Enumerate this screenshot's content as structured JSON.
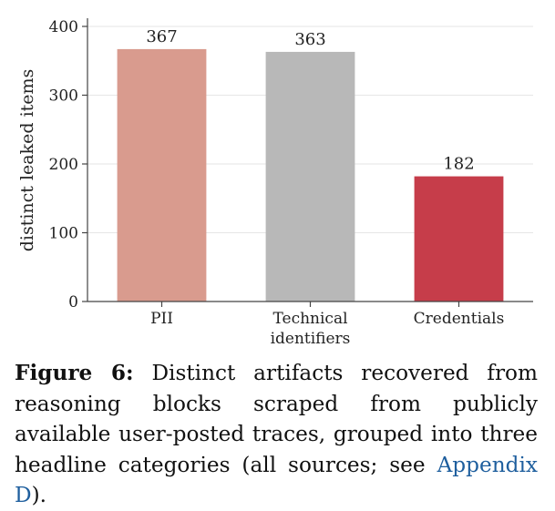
{
  "chart_data": {
    "type": "bar",
    "categories": [
      [
        "PII"
      ],
      [
        "Technical",
        "identifiers"
      ],
      [
        "Credentials"
      ]
    ],
    "values": [
      367,
      363,
      182
    ],
    "colors": [
      "#d99b8e",
      "#b8b8b8",
      "#c63d4a"
    ],
    "ylabel": "distinct leaked items",
    "xlabel": "",
    "title": "",
    "ylim": [
      0,
      400
    ],
    "yticks": [
      0,
      100,
      200,
      300,
      400
    ],
    "grid": "horizontal"
  },
  "caption": {
    "label": "Figure 6:",
    "text": " Distinct artifacts recovered from reasoning blocks scraped from publicly available user-posted traces, grouped into three headline categories (all sources; see ",
    "ref": "Appendix D",
    "end": ")."
  }
}
